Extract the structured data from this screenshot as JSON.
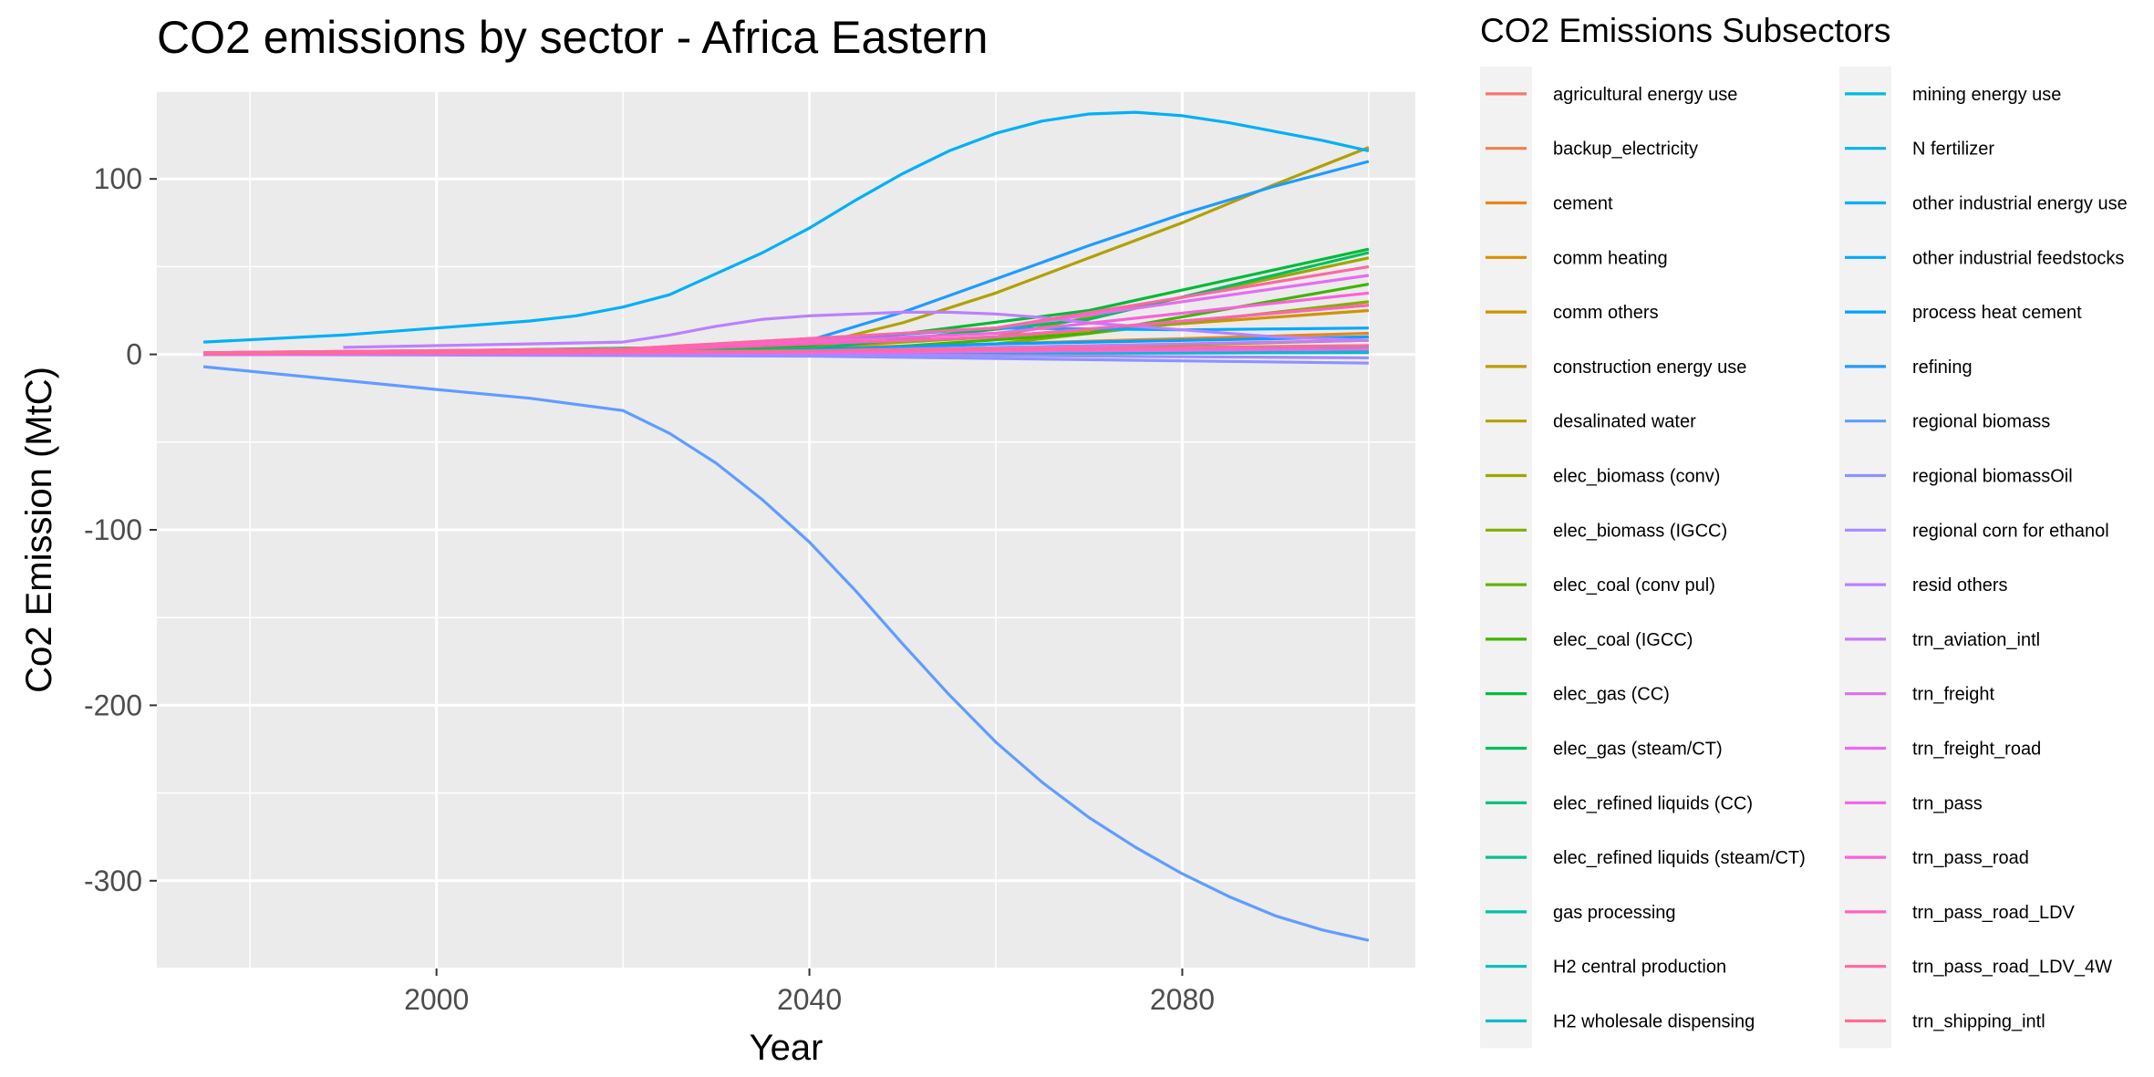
{
  "chart_data": {
    "type": "line",
    "title": "CO2 emissions by sector - Africa Eastern",
    "xlabel": "Year",
    "ylabel": "Co2 Emission (MtC)",
    "xlim": [
      1970,
      2105
    ],
    "ylim": [
      -350,
      150
    ],
    "xticks": [
      2000,
      2040,
      2080
    ],
    "yticks": [
      -300,
      -200,
      -100,
      0,
      100
    ],
    "grid": true,
    "legend_title": "CO2 Emissions Subsectors",
    "legend_position": "right",
    "series": [
      {
        "name": "agricultural energy use",
        "color": "#F8766D",
        "x": [
          1975,
          2100
        ],
        "y": [
          0,
          2
        ]
      },
      {
        "name": "backup_electricity",
        "color": "#F07E4E",
        "x": [
          1975,
          2100
        ],
        "y": [
          0,
          1
        ]
      },
      {
        "name": "cement",
        "color": "#E7861B",
        "x": [
          1975,
          2020,
          2060,
          2100
        ],
        "y": [
          0.3,
          1,
          6,
          12
        ]
      },
      {
        "name": "comm heating",
        "color": "#DB8E00",
        "x": [
          1975,
          2100
        ],
        "y": [
          0,
          1.5
        ]
      },
      {
        "name": "comm others",
        "color": "#CF9400",
        "x": [
          1975,
          2020,
          2060,
          2100
        ],
        "y": [
          0.3,
          1.5,
          10,
          25
        ]
      },
      {
        "name": "construction energy use",
        "color": "#C09B00",
        "x": [
          1975,
          2020,
          2060,
          2100
        ],
        "y": [
          0.2,
          1,
          10,
          28
        ]
      },
      {
        "name": "desalinated water",
        "color": "#AFA100",
        "x": [
          1975,
          2040,
          2050,
          2060,
          2070,
          2080,
          2090,
          2100
        ],
        "y": [
          0,
          5,
          18,
          35,
          55,
          75,
          97,
          118
        ]
      },
      {
        "name": "elec_biomass (conv)",
        "color": "#9CA700",
        "x": [
          1975,
          2030,
          2060,
          2100
        ],
        "y": [
          0,
          1,
          10,
          55
        ]
      },
      {
        "name": "elec_biomass (IGCC)",
        "color": "#85AD00",
        "x": [
          1975,
          2030,
          2060,
          2100
        ],
        "y": [
          0,
          1,
          6,
          30
        ]
      },
      {
        "name": "elec_coal (conv pul)",
        "color": "#68B100",
        "x": [
          1975,
          2020,
          2060,
          2100
        ],
        "y": [
          0.5,
          2,
          3,
          8
        ]
      },
      {
        "name": "elec_coal (IGCC)",
        "color": "#3DB600",
        "x": [
          1975,
          2040,
          2070,
          2100
        ],
        "y": [
          0,
          1,
          12,
          40
        ]
      },
      {
        "name": "elec_gas (CC)",
        "color": "#00BA38",
        "x": [
          1975,
          2040,
          2070,
          2100
        ],
        "y": [
          0,
          5,
          25,
          60
        ]
      },
      {
        "name": "elec_gas (steam/CT)",
        "color": "#00BD5C",
        "x": [
          1975,
          2040,
          2070,
          2100
        ],
        "y": [
          0,
          3,
          20,
          58
        ]
      },
      {
        "name": "elec_refined liquids (CC)",
        "color": "#00BF78",
        "x": [
          1975,
          2050,
          2100
        ],
        "y": [
          0,
          2,
          5
        ]
      },
      {
        "name": "elec_refined liquids (steam/CT)",
        "color": "#00C08E",
        "x": [
          1975,
          2050,
          2100
        ],
        "y": [
          0.5,
          2,
          3
        ]
      },
      {
        "name": "gas processing",
        "color": "#00C1A3",
        "x": [
          1975,
          2050,
          2100
        ],
        "y": [
          0,
          1.5,
          3
        ]
      },
      {
        "name": "H2 central production",
        "color": "#00C0B8",
        "x": [
          1975,
          2050,
          2100
        ],
        "y": [
          0,
          1,
          2
        ]
      },
      {
        "name": "H2 wholesale dispensing",
        "color": "#00BDCB",
        "x": [
          1975,
          2050,
          2100
        ],
        "y": [
          0,
          0.5,
          1
        ]
      },
      {
        "name": "mining energy use",
        "color": "#00BADC",
        "x": [
          1975,
          2050,
          2100
        ],
        "y": [
          0,
          1,
          4
        ]
      },
      {
        "name": "N fertilizer",
        "color": "#00B5EB",
        "x": [
          1975,
          2050,
          2100
        ],
        "y": [
          0,
          1,
          3
        ]
      },
      {
        "name": "other industrial energy use",
        "color": "#00B0F6",
        "x": [
          1975,
          1990,
          2000,
          2010,
          2015,
          2020,
          2025,
          2030,
          2035,
          2040,
          2045,
          2050,
          2055,
          2060,
          2065,
          2070,
          2075,
          2080,
          2085,
          2090,
          2095,
          2100
        ],
        "y": [
          7,
          11,
          15,
          19,
          22,
          27,
          34,
          46,
          58,
          72,
          88,
          103,
          116,
          126,
          133,
          137,
          138,
          136,
          132,
          127,
          122,
          116
        ]
      },
      {
        "name": "other industrial feedstocks",
        "color": "#00A9FF",
        "x": [
          1975,
          2020,
          2040,
          2060,
          2080,
          2100
        ],
        "y": [
          0,
          2,
          8,
          15,
          14,
          15
        ]
      },
      {
        "name": "process heat cement",
        "color": "#00A2FF",
        "x": [
          1975,
          2030,
          2060,
          2100
        ],
        "y": [
          0,
          1,
          6,
          10
        ]
      },
      {
        "name": "refining",
        "color": "#1F9BFF",
        "x": [
          1975,
          2020,
          2040,
          2050,
          2060,
          2070,
          2080,
          2090,
          2100
        ],
        "y": [
          0,
          2,
          8,
          24,
          43,
          62,
          80,
          96,
          110
        ]
      },
      {
        "name": "regional biomass",
        "color": "#619CFF",
        "x": [
          1975,
          2000,
          2010,
          2020,
          2025,
          2030,
          2035,
          2040,
          2045,
          2050,
          2055,
          2060,
          2065,
          2070,
          2075,
          2080,
          2085,
          2090,
          2095,
          2100
        ],
        "y": [
          -7,
          -20,
          -25,
          -32,
          -45,
          -62,
          -83,
          -107,
          -135,
          -165,
          -194,
          -221,
          -244,
          -264,
          -281,
          -296,
          -309,
          -320,
          -328,
          -334
        ]
      },
      {
        "name": "regional biomassOil",
        "color": "#8B93FF",
        "x": [
          1975,
          2040,
          2070,
          2100
        ],
        "y": [
          0,
          -1,
          -3,
          -5
        ]
      },
      {
        "name": "regional corn for ethanol",
        "color": "#A58AFF",
        "x": [
          1975,
          2040,
          2070,
          2100
        ],
        "y": [
          0,
          0,
          -1,
          -2
        ]
      },
      {
        "name": "resid others",
        "color": "#BA81FF",
        "x": [
          1990,
          2000,
          2010,
          2020,
          2025,
          2030,
          2035,
          2040,
          2045,
          2050,
          2055,
          2060,
          2065,
          2070,
          2080,
          2090,
          2100
        ],
        "y": [
          4,
          5,
          6,
          7,
          11,
          16,
          20,
          22,
          23,
          24,
          24,
          23,
          21,
          18,
          14,
          10,
          8
        ]
      },
      {
        "name": "trn_aviation_intl",
        "color": "#CB79F4",
        "x": [
          1975,
          2040,
          2100
        ],
        "y": [
          0.5,
          2,
          8
        ]
      },
      {
        "name": "trn_freight",
        "color": "#DA71E7",
        "x": [
          1975,
          2040,
          2100
        ],
        "y": [
          0,
          1,
          3
        ]
      },
      {
        "name": "trn_freight_road",
        "color": "#E76BF3",
        "x": [
          1975,
          2020,
          2060,
          2100
        ],
        "y": [
          1,
          3,
          15,
          45
        ]
      },
      {
        "name": "trn_pass",
        "color": "#F365E6",
        "x": [
          1975,
          2040,
          2100
        ],
        "y": [
          0,
          1,
          3
        ]
      },
      {
        "name": "trn_pass_road",
        "color": "#FA62DB",
        "x": [
          1975,
          2020,
          2060,
          2100
        ],
        "y": [
          1,
          3,
          12,
          35
        ]
      },
      {
        "name": "trn_pass_road_LDV",
        "color": "#FF62BC",
        "x": [
          1975,
          2020,
          2060,
          2100
        ],
        "y": [
          0.5,
          2,
          10,
          28
        ]
      },
      {
        "name": "trn_pass_road_LDV_4W",
        "color": "#FF67A4",
        "x": [
          1975,
          2020,
          2060,
          2100
        ],
        "y": [
          1,
          3,
          15,
          50
        ]
      },
      {
        "name": "trn_shipping_intl",
        "color": "#FF6C91",
        "x": [
          1975,
          2040,
          2100
        ],
        "y": [
          0.5,
          2,
          5
        ]
      }
    ]
  }
}
